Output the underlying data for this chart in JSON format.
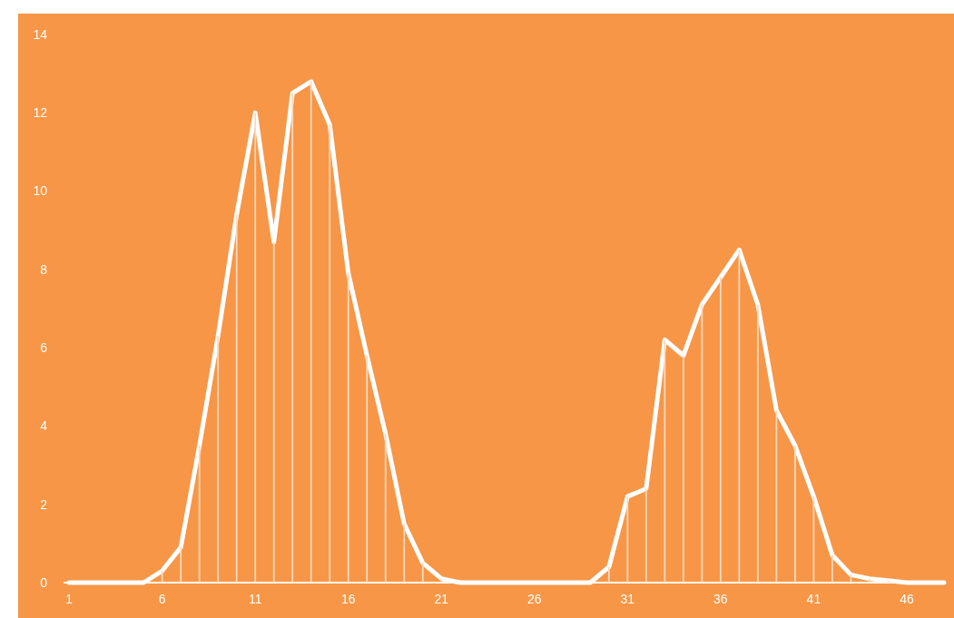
{
  "chart_data": {
    "type": "line",
    "x": [
      1,
      2,
      3,
      4,
      5,
      6,
      7,
      8,
      9,
      10,
      11,
      12,
      13,
      14,
      15,
      16,
      17,
      18,
      19,
      20,
      21,
      22,
      23,
      24,
      25,
      26,
      27,
      28,
      29,
      30,
      31,
      32,
      33,
      34,
      35,
      36,
      37,
      38,
      39,
      40,
      41,
      42,
      43,
      44,
      45,
      46,
      47,
      48
    ],
    "series": [
      {
        "type": "bar",
        "color": "#fcd9bc",
        "values": [
          0,
          0,
          0,
          0,
          0,
          0.3,
          0.9,
          3.5,
          6.3,
          9.4,
          12.0,
          8.7,
          12.5,
          12.8,
          11.7,
          7.9,
          5.8,
          3.8,
          1.5,
          0.5,
          0.1,
          0,
          0,
          0,
          0,
          0,
          0,
          0,
          0,
          0.4,
          2.2,
          2.4,
          6.2,
          5.8,
          7.1,
          7.8,
          8.5,
          7.1,
          4.4,
          3.5,
          2.2,
          0.7,
          0.2,
          0.1,
          0.05,
          0,
          0,
          0
        ]
      },
      {
        "color": "#ffffff",
        "values": [
          0,
          0,
          0,
          0,
          0,
          0.3,
          0.9,
          3.5,
          6.3,
          9.4,
          12.0,
          8.7,
          12.5,
          12.8,
          11.7,
          7.9,
          5.8,
          3.8,
          1.5,
          0.5,
          0.1,
          0,
          0,
          0,
          0,
          0,
          0,
          0,
          0,
          0.4,
          2.2,
          2.4,
          6.2,
          5.8,
          7.1,
          7.8,
          8.5,
          7.1,
          4.4,
          3.5,
          2.2,
          0.7,
          0.2,
          0.1,
          0.05,
          0,
          0,
          0
        ]
      }
    ],
    "xlim": [
      0.7,
      48.1
    ],
    "xticks": [
      1,
      6,
      11,
      16,
      21,
      26,
      31,
      36,
      41,
      46
    ],
    "ylim": [
      0,
      14
    ],
    "yticks": [
      0,
      2,
      4,
      6,
      8,
      10,
      12,
      14
    ],
    "grid": false,
    "marker": "none",
    "line_style": "solid"
  }
}
